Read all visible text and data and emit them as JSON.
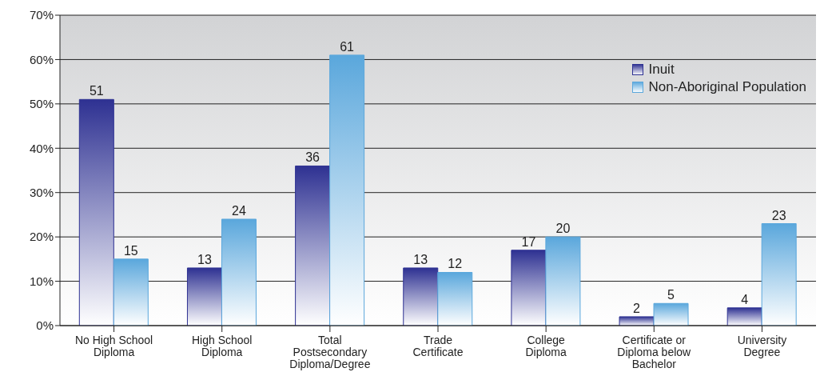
{
  "chart_data": {
    "type": "bar",
    "categories": [
      "No High School Diploma",
      "High School Diploma",
      "Total Postsecondary Diploma/Degree",
      "Trade Certificate",
      "College Diploma",
      "Certificate or Diploma below Bachelor",
      "University Degree"
    ],
    "series": [
      {
        "name": "Inuit",
        "color": "#2e3192",
        "values": [
          51,
          13,
          36,
          13,
          17,
          2,
          4
        ]
      },
      {
        "name": "Non-Aboriginal Population",
        "color": "#5aa7dc",
        "values": [
          15,
          24,
          61,
          12,
          20,
          5,
          23
        ]
      }
    ],
    "ylim": [
      0,
      70
    ],
    "yticks": [
      {
        "value": 0,
        "label": "0%"
      },
      {
        "value": 10,
        "label": "10%"
      },
      {
        "value": 20,
        "label": "20%"
      },
      {
        "value": 30,
        "label": "30%"
      },
      {
        "value": 40,
        "label": "40%"
      },
      {
        "value": 50,
        "label": "50%"
      },
      {
        "value": 60,
        "label": "60%"
      },
      {
        "value": 70,
        "label": "70%"
      }
    ],
    "grid": "y",
    "legend": "top right",
    "data_labels": true
  }
}
